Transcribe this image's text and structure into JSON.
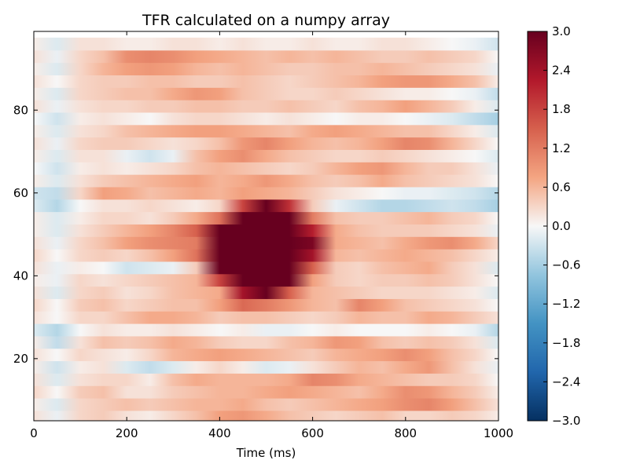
{
  "chart_data": {
    "type": "heatmap",
    "title": "TFR calculated on a numpy array",
    "xlabel": "Time (ms)",
    "ylabel": "",
    "xlim": [
      0,
      1000
    ],
    "ylim": [
      5,
      99
    ],
    "x_ticks": [
      "0",
      "200",
      "400",
      "600",
      "800",
      "1000"
    ],
    "y_ticks": [
      "20",
      "40",
      "60",
      "80"
    ],
    "x_tick_values": [
      0,
      200,
      400,
      600,
      800,
      1000
    ],
    "y_tick_values": [
      20,
      40,
      60,
      80
    ],
    "colorbar": {
      "colormap": "RdBu_r",
      "vmin": -3.0,
      "vmax": 3.0,
      "tick_labels": [
        "3.0",
        "2.4",
        "1.8",
        "1.2",
        "0.6",
        "0.0",
        "−0.6",
        "−1.2",
        "−1.8",
        "−2.4",
        "−3.0"
      ],
      "tick_values": [
        3.0,
        2.4,
        1.8,
        1.2,
        0.6,
        0.0,
        -0.6,
        -1.2,
        -1.8,
        -2.4,
        -3.0
      ]
    },
    "frequencies": [
      6,
      9,
      12,
      15,
      18,
      21,
      24,
      27,
      30,
      33,
      36,
      39,
      42,
      45,
      48,
      51,
      54,
      57,
      60,
      63,
      66,
      69,
      72,
      75,
      78,
      81,
      84,
      87,
      90,
      93,
      96
    ],
    "times": [
      0,
      50,
      100,
      150,
      200,
      250,
      300,
      350,
      400,
      450,
      500,
      550,
      600,
      650,
      700,
      750,
      800,
      850,
      900,
      950,
      1000
    ],
    "values": [
      [
        0.2,
        -0.1,
        0.3,
        0.4,
        0.2,
        0.1,
        0.3,
        0.5,
        0.8,
        0.9,
        0.7,
        0.5,
        0.4,
        0.3,
        0.4,
        0.5,
        0.3,
        0.3,
        0.4,
        0.3,
        0.1
      ],
      [
        0.1,
        -0.2,
        0.3,
        0.4,
        0.5,
        0.4,
        0.5,
        0.6,
        0.6,
        0.7,
        0.5,
        0.4,
        0.5,
        0.6,
        0.7,
        0.8,
        1.0,
        1.1,
        0.8,
        0.5,
        0.2
      ],
      [
        0.3,
        0.0,
        0.4,
        0.5,
        0.2,
        0.2,
        0.4,
        0.5,
        0.6,
        0.6,
        0.7,
        0.8,
        0.7,
        0.6,
        0.5,
        0.7,
        1.0,
        0.9,
        0.6,
        0.4,
        0.1
      ],
      [
        0.2,
        -0.2,
        0.2,
        0.3,
        0.3,
        0.1,
        0.5,
        0.7,
        0.6,
        0.6,
        0.6,
        0.7,
        1.1,
        1.0,
        0.7,
        0.6,
        0.5,
        0.4,
        0.4,
        0.3,
        0.0
      ],
      [
        0.1,
        -0.3,
        0.1,
        0.2,
        -0.2,
        -0.4,
        -0.2,
        0.1,
        0.3,
        0.1,
        -0.2,
        -0.1,
        0.2,
        0.4,
        0.6,
        0.5,
        0.7,
        0.9,
        0.5,
        0.2,
        -0.1
      ],
      [
        0.2,
        0.0,
        0.3,
        0.2,
        0.1,
        0.3,
        0.6,
        0.7,
        0.8,
        0.7,
        0.6,
        0.5,
        0.4,
        0.6,
        0.7,
        0.8,
        1.0,
        0.8,
        0.5,
        0.3,
        0.0
      ],
      [
        0.1,
        -0.4,
        0.2,
        0.5,
        0.4,
        0.5,
        0.7,
        0.6,
        0.4,
        0.3,
        0.3,
        0.5,
        0.6,
        0.9,
        0.8,
        0.5,
        0.4,
        0.5,
        0.4,
        0.2,
        -0.2
      ],
      [
        -0.2,
        -0.5,
        0.0,
        0.2,
        0.1,
        0.1,
        0.2,
        0.1,
        0.0,
        0.1,
        -0.1,
        -0.1,
        0.0,
        0.1,
        0.0,
        0.0,
        0.0,
        0.1,
        0.0,
        -0.1,
        -0.5
      ],
      [
        0.2,
        0.0,
        0.3,
        0.3,
        0.5,
        0.7,
        0.7,
        0.6,
        0.4,
        0.5,
        0.5,
        0.4,
        0.3,
        0.4,
        0.6,
        0.5,
        0.5,
        0.7,
        0.6,
        0.4,
        0.2
      ],
      [
        0.3,
        0.0,
        0.4,
        0.5,
        0.3,
        0.4,
        0.5,
        0.5,
        0.8,
        1.4,
        1.2,
        0.9,
        0.6,
        0.5,
        1.1,
        0.8,
        0.5,
        0.4,
        0.3,
        0.2,
        0.0
      ],
      [
        0.2,
        -0.2,
        0.3,
        0.4,
        0.2,
        0.3,
        0.5,
        0.6,
        0.7,
        2.4,
        4.5,
        1.5,
        0.6,
        0.5,
        0.4,
        0.3,
        0.3,
        0.3,
        0.2,
        0.1,
        -0.2
      ],
      [
        0.1,
        -0.1,
        0.3,
        0.2,
        0.3,
        0.4,
        0.5,
        0.6,
        1.8,
        4.5,
        4.5,
        4.0,
        0.8,
        0.4,
        0.3,
        0.4,
        0.4,
        0.5,
        0.4,
        0.2,
        0.0
      ],
      [
        0.2,
        -0.1,
        0.1,
        0.0,
        -0.3,
        -0.2,
        -0.1,
        0.4,
        3.5,
        4.5,
        4.5,
        4.5,
        1.5,
        0.4,
        0.3,
        0.5,
        0.6,
        0.7,
        0.4,
        0.2,
        -0.2
      ],
      [
        0.3,
        0.0,
        0.3,
        0.4,
        0.3,
        0.5,
        0.8,
        1.3,
        4.2,
        4.5,
        4.5,
        4.5,
        2.4,
        0.6,
        0.5,
        0.6,
        0.7,
        0.6,
        0.5,
        0.3,
        0.1
      ],
      [
        0.2,
        -0.1,
        0.3,
        0.5,
        0.8,
        1.0,
        1.1,
        1.2,
        4.5,
        4.5,
        4.5,
        4.5,
        2.8,
        0.7,
        0.6,
        0.5,
        0.7,
        0.9,
        1.0,
        0.7,
        0.3
      ],
      [
        0.1,
        -0.2,
        0.2,
        0.4,
        0.6,
        0.8,
        1.1,
        1.5,
        4.5,
        4.5,
        4.5,
        4.5,
        2.2,
        0.7,
        0.5,
        0.4,
        0.4,
        0.4,
        0.3,
        0.2,
        -0.1
      ],
      [
        0.1,
        -0.2,
        0.1,
        0.3,
        0.3,
        0.2,
        0.4,
        0.7,
        1.3,
        4.5,
        4.5,
        3.0,
        1.2,
        0.5,
        0.4,
        0.4,
        0.5,
        0.6,
        0.4,
        0.3,
        0.0
      ],
      [
        -0.2,
        -0.5,
        0.0,
        0.2,
        0.2,
        0.3,
        0.2,
        0.1,
        0.3,
        1.8,
        4.5,
        2.0,
        0.4,
        -0.1,
        -0.3,
        -0.5,
        -0.5,
        -0.4,
        -0.3,
        -0.4,
        -0.6
      ],
      [
        -0.3,
        -0.4,
        0.3,
        0.8,
        0.7,
        0.5,
        0.6,
        0.7,
        0.6,
        0.8,
        0.7,
        0.6,
        0.4,
        0.2,
        0.1,
        0.0,
        -0.1,
        -0.1,
        -0.2,
        -0.3,
        -0.5
      ],
      [
        0.1,
        -0.2,
        0.2,
        0.4,
        0.5,
        0.6,
        0.7,
        0.8,
        0.6,
        0.7,
        0.9,
        0.7,
        0.5,
        0.4,
        0.5,
        0.7,
        0.5,
        0.4,
        0.3,
        0.2,
        0.0
      ],
      [
        0.0,
        -0.3,
        0.1,
        0.2,
        0.1,
        0.2,
        0.3,
        0.5,
        0.6,
        0.5,
        0.4,
        0.3,
        0.4,
        0.6,
        0.8,
        0.9,
        0.6,
        0.4,
        0.4,
        0.2,
        -0.1
      ],
      [
        0.1,
        -0.2,
        0.2,
        0.2,
        -0.1,
        -0.3,
        -0.1,
        0.5,
        0.8,
        1.0,
        0.7,
        0.5,
        0.4,
        0.3,
        0.3,
        0.4,
        0.3,
        0.2,
        0.1,
        0.0,
        -0.2
      ],
      [
        0.2,
        -0.1,
        0.3,
        0.4,
        0.4,
        0.3,
        0.2,
        0.3,
        0.5,
        0.9,
        1.1,
        0.8,
        0.6,
        0.5,
        0.6,
        0.8,
        1.1,
        1.0,
        0.6,
        0.3,
        0.0
      ],
      [
        0.1,
        -0.2,
        0.2,
        0.3,
        0.5,
        0.6,
        0.7,
        0.8,
        0.8,
        0.7,
        0.6,
        0.5,
        0.7,
        0.8,
        0.7,
        0.6,
        0.5,
        0.5,
        0.3,
        0.1,
        -0.2
      ],
      [
        0.0,
        -0.3,
        0.1,
        0.2,
        0.1,
        0.0,
        0.2,
        0.3,
        0.3,
        0.2,
        0.1,
        0.2,
        0.1,
        0.0,
        0.1,
        0.1,
        0.0,
        -0.1,
        -0.2,
        -0.4,
        -0.6
      ],
      [
        0.2,
        -0.1,
        0.2,
        0.3,
        0.3,
        0.4,
        0.4,
        0.5,
        0.5,
        0.4,
        0.4,
        0.5,
        0.4,
        0.3,
        0.5,
        0.6,
        0.8,
        0.6,
        0.4,
        0.1,
        -0.2
      ],
      [
        0.1,
        -0.2,
        0.3,
        0.4,
        0.5,
        0.5,
        0.7,
        0.9,
        0.8,
        0.5,
        0.4,
        0.3,
        0.3,
        0.4,
        0.3,
        0.2,
        0.1,
        0.1,
        0.0,
        -0.1,
        -0.4
      ],
      [
        0.2,
        0.0,
        0.3,
        0.4,
        0.4,
        0.5,
        0.5,
        0.4,
        0.4,
        0.5,
        0.4,
        0.3,
        0.4,
        0.5,
        0.6,
        0.8,
        0.9,
        0.9,
        0.7,
        0.5,
        0.1
      ],
      [
        0.1,
        -0.2,
        0.3,
        0.6,
        0.8,
        0.9,
        0.8,
        0.6,
        0.5,
        0.6,
        0.5,
        0.4,
        0.4,
        0.5,
        0.5,
        0.6,
        0.5,
        0.4,
        0.3,
        0.2,
        -0.1
      ],
      [
        0.2,
        -0.1,
        0.3,
        0.5,
        1.0,
        1.1,
        1.0,
        0.8,
        0.7,
        0.6,
        0.5,
        0.6,
        0.5,
        0.6,
        0.5,
        0.4,
        0.4,
        0.5,
        0.4,
        0.3,
        0.0
      ],
      [
        0.1,
        -0.2,
        0.2,
        0.2,
        0.1,
        0.1,
        0.2,
        0.2,
        0.1,
        0.2,
        0.1,
        0.1,
        0.2,
        0.1,
        0.1,
        0.2,
        0.2,
        0.1,
        0.0,
        -0.1,
        -0.3
      ]
    ]
  }
}
